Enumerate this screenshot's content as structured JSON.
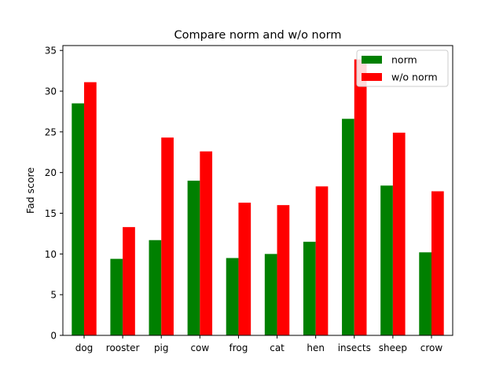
{
  "chart_data": {
    "type": "bar",
    "title": "Compare norm and w/o norm",
    "xlabel": "",
    "ylabel": "Fad score",
    "categories": [
      "dog",
      "rooster",
      "pig",
      "cow",
      "frog",
      "cat",
      "hen",
      "insects",
      "sheep",
      "crow"
    ],
    "series": [
      {
        "name": "norm",
        "color": "#008000",
        "values": [
          28.5,
          9.4,
          11.7,
          19.0,
          9.5,
          10.0,
          11.5,
          26.6,
          18.4,
          10.2
        ]
      },
      {
        "name": "w/o norm",
        "color": "#ff0000",
        "values": [
          31.1,
          13.3,
          24.3,
          22.6,
          16.3,
          16.0,
          18.3,
          33.9,
          24.9,
          17.7
        ]
      }
    ],
    "ylim": [
      0,
      35.6
    ],
    "yticks": [
      0,
      5,
      10,
      15,
      20,
      25,
      30,
      35
    ],
    "grid": false,
    "legend_position": "top-right"
  }
}
